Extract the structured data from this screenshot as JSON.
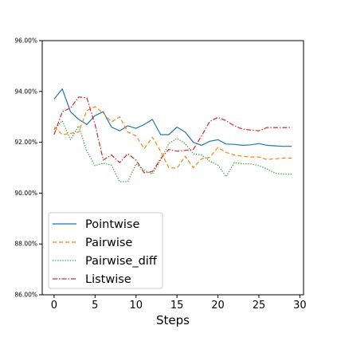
{
  "chart_data": {
    "type": "line",
    "title": "",
    "xlabel": "Steps",
    "ylabel": "",
    "xlim": [
      -1.45,
      30.45
    ],
    "ylim": [
      0.86,
      0.96
    ],
    "x_ticks": [
      0,
      5,
      10,
      15,
      20,
      25,
      30
    ],
    "x_tick_labels": [
      "0",
      "5",
      "10",
      "15",
      "20",
      "25",
      "30"
    ],
    "y_ticks": [
      0.86,
      0.88,
      0.9,
      0.92,
      0.94,
      0.96
    ],
    "y_tick_labels": [
      "86.00%",
      "88.00%",
      "90.00%",
      "92.00%",
      "94.00%",
      "96.00%"
    ],
    "grid": false,
    "legend_position": "lower-left",
    "x": [
      0,
      1,
      2,
      3,
      4,
      5,
      6,
      7,
      8,
      9,
      10,
      11,
      12,
      13,
      14,
      15,
      16,
      17,
      18,
      19,
      20,
      21,
      22,
      23,
      24,
      25,
      26,
      27,
      28,
      29
    ],
    "series": [
      {
        "name": "Pointwise",
        "color": "#1f77b4",
        "dash": "solid",
        "values": [
          0.937,
          0.941,
          0.932,
          0.929,
          0.927,
          0.9305,
          0.932,
          0.926,
          0.9245,
          0.9265,
          0.9255,
          0.927,
          0.929,
          0.923,
          0.923,
          0.926,
          0.924,
          0.92,
          0.9188,
          0.9204,
          0.921,
          0.9193,
          0.9192,
          0.9188,
          0.919,
          0.9195,
          0.9188,
          0.9186,
          0.9184,
          0.9184
        ]
      },
      {
        "name": "Pairwise",
        "color": "#ff7f0e",
        "dash": "dashed",
        "values": [
          0.926,
          0.923,
          0.9235,
          0.924,
          0.9325,
          0.934,
          0.9315,
          0.928,
          0.93,
          0.924,
          0.9225,
          0.9175,
          0.922,
          0.9165,
          0.91,
          0.9098,
          0.9145,
          0.91,
          0.9135,
          0.914,
          0.918,
          0.916,
          0.915,
          0.9145,
          0.9142,
          0.9142,
          0.9132,
          0.9135,
          0.9138,
          0.9138
        ]
      },
      {
        "name": "Pairwise_diff",
        "color": "#2ca02c",
        "dash": "dotted",
        "values": [
          0.925,
          0.9285,
          0.921,
          0.9265,
          0.9165,
          0.9108,
          0.9118,
          0.911,
          0.9045,
          0.9045,
          0.9115,
          0.909,
          0.9075,
          0.913,
          0.9195,
          0.9215,
          0.9195,
          0.9155,
          0.915,
          0.9125,
          0.911,
          0.9065,
          0.912,
          0.9115,
          0.9115,
          0.9108,
          0.9095,
          0.9078,
          0.9075,
          0.9075
        ]
      },
      {
        "name": "Listwise",
        "color": "#d62728",
        "dash": "dashdot",
        "values": [
          0.923,
          0.932,
          0.9335,
          0.9378,
          0.9375,
          0.927,
          0.913,
          0.915,
          0.912,
          0.9155,
          0.913,
          0.908,
          0.9085,
          0.9135,
          0.9172,
          0.9165,
          0.9168,
          0.9172,
          0.9225,
          0.9282,
          0.9298,
          0.9285,
          0.9265,
          0.9252,
          0.9248,
          0.9245,
          0.9258,
          0.9258,
          0.9258,
          0.9258
        ]
      }
    ]
  }
}
